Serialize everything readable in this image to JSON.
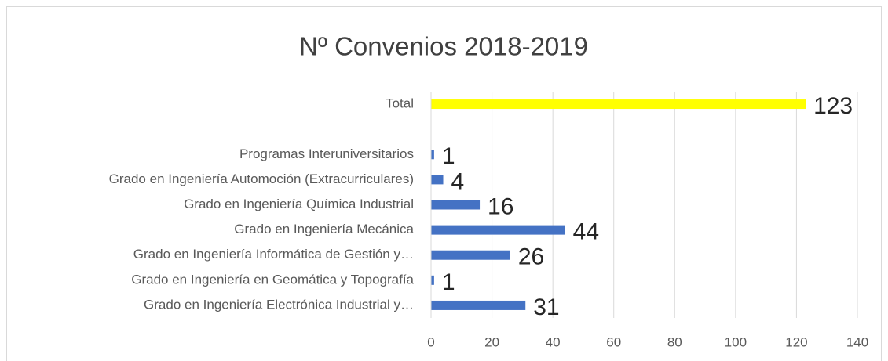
{
  "chart_data": {
    "type": "barh",
    "title": "Nº Convenios 2018-2019",
    "categories": [
      "Total",
      null,
      "Programas Interuniversitarios",
      "Grado en Ingeniería Automoción (Extracurriculares)",
      "Grado en Ingeniería Química Industrial",
      "Grado en Ingeniería Mecánica",
      "Grado en Ingeniería Informática de Gestión y…",
      "Grado en Ingeniería en Geomática y Topografía",
      "Grado en Ingeniería Electrónica Industrial y…"
    ],
    "values": [
      123,
      null,
      1,
      4,
      16,
      44,
      26,
      1,
      31
    ],
    "colors": [
      "#ffff00",
      null,
      "#4472c4",
      "#4472c4",
      "#4472c4",
      "#4472c4",
      "#4472c4",
      "#4472c4",
      "#4472c4"
    ],
    "xlim": [
      0,
      140
    ],
    "xticks": [
      0,
      20,
      40,
      60,
      80,
      100,
      120,
      140
    ],
    "grid": true
  }
}
